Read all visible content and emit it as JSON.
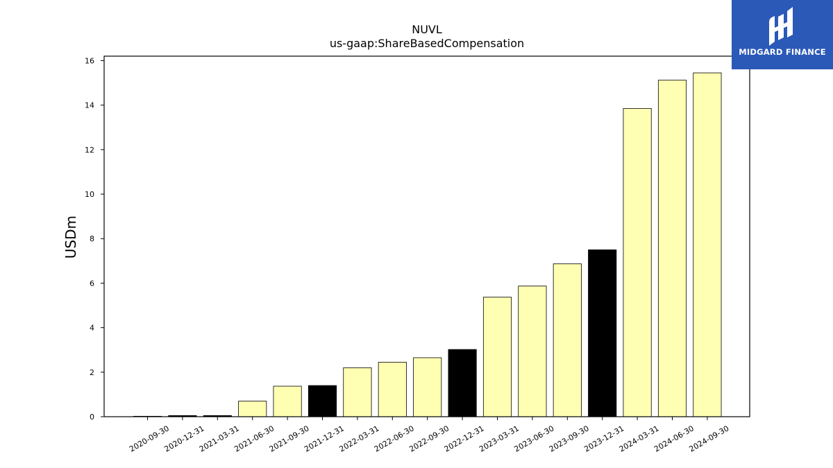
{
  "brand": {
    "name": "MIDGARD FINANCE"
  },
  "chart_data": {
    "type": "bar",
    "title": "NUVL",
    "subtitle": "us-gaap:ShareBasedCompensation",
    "xlabel": "",
    "ylabel": "USDm",
    "ylim": [
      0,
      16.2
    ],
    "yticks": [
      0,
      2,
      4,
      6,
      8,
      10,
      12,
      14,
      16
    ],
    "grid": false,
    "categories": [
      "2020-09-30",
      "2020-12-31",
      "2021-03-31",
      "2021-06-30",
      "2021-09-30",
      "2021-12-31",
      "2022-03-31",
      "2022-06-30",
      "2022-09-30",
      "2022-12-31",
      "2023-03-31",
      "2023-06-30",
      "2023-09-30",
      "2023-12-31",
      "2024-03-31",
      "2024-06-30",
      "2024-09-30"
    ],
    "values": [
      0.02,
      0.05,
      0.05,
      0.7,
      1.37,
      1.4,
      2.2,
      2.45,
      2.65,
      3.02,
      5.37,
      5.87,
      6.87,
      7.5,
      13.85,
      15.12,
      15.45
    ],
    "bar_colors": [
      "#ffffb3",
      "#000000",
      "#000000",
      "#ffffb3",
      "#ffffb3",
      "#000000",
      "#ffffb3",
      "#ffffb3",
      "#ffffb3",
      "#000000",
      "#ffffb3",
      "#ffffb3",
      "#ffffb3",
      "#000000",
      "#ffffb3",
      "#ffffb3",
      "#ffffb3"
    ]
  }
}
